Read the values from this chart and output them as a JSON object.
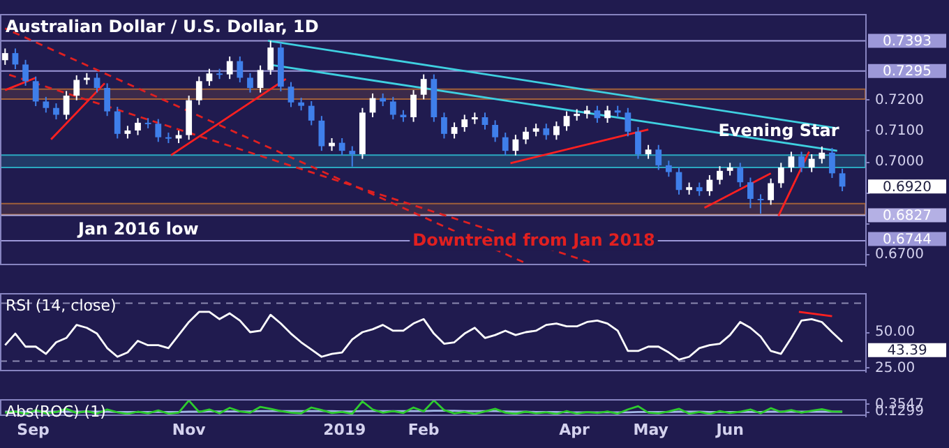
{
  "chart_data": [
    {
      "type": "candlestick",
      "title": "Australian Dollar / U.S. Dollar, 1D",
      "grid": false,
      "tick_labels": "y",
      "x": [
        "2018-08-21",
        "2018-08-25",
        "2018-08-29",
        "2018-09-02",
        "2018-09-06",
        "2018-09-10",
        "2018-09-14",
        "2018-09-18",
        "2018-09-22",
        "2018-09-26",
        "2018-09-30",
        "2018-10-04",
        "2018-10-08",
        "2018-10-12",
        "2018-10-16",
        "2018-10-20",
        "2018-10-24",
        "2018-10-28",
        "2018-11-01",
        "2018-11-05",
        "2018-11-09",
        "2018-11-13",
        "2018-11-17",
        "2018-11-21",
        "2018-11-25",
        "2018-11-29",
        "2018-12-03",
        "2018-12-07",
        "2018-12-11",
        "2018-12-15",
        "2018-12-19",
        "2018-12-23",
        "2018-12-27",
        "2018-12-31",
        "2019-01-04",
        "2019-01-08",
        "2019-01-12",
        "2019-01-16",
        "2019-01-20",
        "2019-01-24",
        "2019-01-28",
        "2019-02-01",
        "2019-02-05",
        "2019-02-09",
        "2019-02-13",
        "2019-02-17",
        "2019-02-21",
        "2019-02-25",
        "2019-03-01",
        "2019-03-05",
        "2019-03-09",
        "2019-03-13",
        "2019-03-17",
        "2019-03-21",
        "2019-03-25",
        "2019-03-29",
        "2019-04-02",
        "2019-04-06",
        "2019-04-10",
        "2019-04-14",
        "2019-04-18",
        "2019-04-22",
        "2019-04-26",
        "2019-04-30",
        "2019-05-04",
        "2019-05-08",
        "2019-05-12",
        "2019-05-16",
        "2019-05-20",
        "2019-05-24",
        "2019-05-28",
        "2019-06-01",
        "2019-06-05",
        "2019-06-09",
        "2019-06-13",
        "2019-06-17",
        "2019-06-21",
        "2019-06-25",
        "2019-06-29",
        "2019-07-03",
        "2019-07-07",
        "2019-07-11",
        "2019-07-15"
      ],
      "ohlc": [
        [
          0.733,
          0.7368,
          0.7315,
          0.7353
        ],
        [
          0.7353,
          0.7368,
          0.7301,
          0.7316
        ],
        [
          0.7316,
          0.7331,
          0.7247,
          0.7262
        ],
        [
          0.7262,
          0.7277,
          0.7181,
          0.7196
        ],
        [
          0.7196,
          0.7211,
          0.716,
          0.7175
        ],
        [
          0.7175,
          0.719,
          0.7138,
          0.7153
        ],
        [
          0.7153,
          0.723,
          0.7138,
          0.7215
        ],
        [
          0.7215,
          0.7281,
          0.72,
          0.7266
        ],
        [
          0.7266,
          0.7288,
          0.7251,
          0.7273
        ],
        [
          0.7273,
          0.7288,
          0.7225,
          0.724
        ],
        [
          0.724,
          0.7255,
          0.7149,
          0.7164
        ],
        [
          0.7164,
          0.7179,
          0.7076,
          0.7091
        ],
        [
          0.7091,
          0.7117,
          0.7076,
          0.7102
        ],
        [
          0.7102,
          0.7142,
          0.7087,
          0.7127
        ],
        [
          0.7127,
          0.7142,
          0.7109,
          0.7124
        ],
        [
          0.7124,
          0.7139,
          0.7065,
          0.708
        ],
        [
          0.708,
          0.7095,
          0.7061,
          0.7076
        ],
        [
          0.7076,
          0.7102,
          0.7061,
          0.7087
        ],
        [
          0.7087,
          0.7215,
          0.7072,
          0.72
        ],
        [
          0.72,
          0.7277,
          0.7185,
          0.7262
        ],
        [
          0.7262,
          0.7302,
          0.7247,
          0.7287
        ],
        [
          0.7287,
          0.7302,
          0.7269,
          0.7284
        ],
        [
          0.7284,
          0.7342,
          0.7269,
          0.7327
        ],
        [
          0.7327,
          0.7342,
          0.7258,
          0.7273
        ],
        [
          0.7273,
          0.7288,
          0.7225,
          0.724
        ],
        [
          0.724,
          0.7313,
          0.7225,
          0.7298
        ],
        [
          0.7298,
          0.7393,
          0.7283,
          0.7371
        ],
        [
          0.7371,
          0.7386,
          0.7229,
          0.7244
        ],
        [
          0.7244,
          0.7259,
          0.7178,
          0.7193
        ],
        [
          0.7193,
          0.7208,
          0.7167,
          0.7182
        ],
        [
          0.7182,
          0.7197,
          0.7119,
          0.7134
        ],
        [
          0.7134,
          0.7149,
          0.7036,
          0.7051
        ],
        [
          0.7051,
          0.7077,
          0.7036,
          0.7062
        ],
        [
          0.7062,
          0.7077,
          0.7021,
          0.7036
        ],
        [
          0.7036,
          0.7051,
          0.6985,
          0.7025
        ],
        [
          0.7025,
          0.7175,
          0.701,
          0.716
        ],
        [
          0.716,
          0.7222,
          0.7145,
          0.7207
        ],
        [
          0.7207,
          0.7222,
          0.7181,
          0.7196
        ],
        [
          0.7196,
          0.7211,
          0.7138,
          0.7153
        ],
        [
          0.7153,
          0.7168,
          0.713,
          0.7145
        ],
        [
          0.7145,
          0.7233,
          0.713,
          0.7218
        ],
        [
          0.7218,
          0.7284,
          0.7203,
          0.7269
        ],
        [
          0.7269,
          0.7284,
          0.713,
          0.7145
        ],
        [
          0.7145,
          0.716,
          0.7076,
          0.7091
        ],
        [
          0.7091,
          0.7128,
          0.7076,
          0.7113
        ],
        [
          0.7113,
          0.7153,
          0.7098,
          0.7138
        ],
        [
          0.7138,
          0.716,
          0.7123,
          0.7145
        ],
        [
          0.7145,
          0.716,
          0.7105,
          0.712
        ],
        [
          0.712,
          0.7135,
          0.7065,
          0.708
        ],
        [
          0.708,
          0.7095,
          0.7021,
          0.7036
        ],
        [
          0.7036,
          0.7088,
          0.7021,
          0.7073
        ],
        [
          0.7073,
          0.7113,
          0.7058,
          0.7098
        ],
        [
          0.7098,
          0.7124,
          0.7083,
          0.7109
        ],
        [
          0.7109,
          0.7124,
          0.7072,
          0.7087
        ],
        [
          0.7087,
          0.7131,
          0.7072,
          0.7116
        ],
        [
          0.7116,
          0.7164,
          0.7101,
          0.7149
        ],
        [
          0.7149,
          0.7171,
          0.7134,
          0.7156
        ],
        [
          0.7156,
          0.7182,
          0.7141,
          0.7167
        ],
        [
          0.7167,
          0.7182,
          0.7127,
          0.7142
        ],
        [
          0.7142,
          0.7182,
          0.7127,
          0.7167
        ],
        [
          0.7167,
          0.7182,
          0.7145,
          0.716
        ],
        [
          0.716,
          0.7175,
          0.7083,
          0.7098
        ],
        [
          0.7098,
          0.7113,
          0.701,
          0.7025
        ],
        [
          0.7025,
          0.7055,
          0.701,
          0.704
        ],
        [
          0.704,
          0.7055,
          0.6974,
          0.6989
        ],
        [
          0.6989,
          0.7004,
          0.6952,
          0.6967
        ],
        [
          0.6967,
          0.6982,
          0.6894,
          0.6909
        ],
        [
          0.6909,
          0.6933,
          0.6894,
          0.6918
        ],
        [
          0.6918,
          0.6933,
          0.689,
          0.6905
        ],
        [
          0.6905,
          0.6957,
          0.689,
          0.6942
        ],
        [
          0.6942,
          0.6986,
          0.6927,
          0.6971
        ],
        [
          0.6971,
          0.6997,
          0.6956,
          0.6982
        ],
        [
          0.6982,
          0.6997,
          0.6919,
          0.6934
        ],
        [
          0.6934,
          0.6949,
          0.685,
          0.688
        ],
        [
          0.688,
          0.6895,
          0.6832,
          0.6876
        ],
        [
          0.6876,
          0.6946,
          0.6861,
          0.6931
        ],
        [
          0.6931,
          0.6997,
          0.6916,
          0.6982
        ],
        [
          0.6982,
          0.7033,
          0.6967,
          0.7018
        ],
        [
          0.7018,
          0.7033,
          0.6967,
          0.6982
        ],
        [
          0.6982,
          0.7025,
          0.6967,
          0.701
        ],
        [
          0.701,
          0.705,
          0.6995,
          0.703
        ],
        [
          0.703,
          0.7045,
          0.6948,
          0.6963
        ],
        [
          0.6963,
          0.6978,
          0.6905,
          0.692
        ]
      ],
      "series": [
        {
          "type": "line",
          "x": [
            "2018-12-02",
            "2019-07-13"
          ],
          "values": [
            0.7393,
            0.7109
          ],
          "color": "#3fd0e0"
        },
        {
          "type": "line",
          "x": [
            "2018-12-02",
            "2019-07-13"
          ],
          "values": [
            0.7316,
            0.7036
          ],
          "color": "#3fd0e0"
        },
        {
          "type": "line",
          "x": [
            "2018-08-21",
            "2019-03-12"
          ],
          "values": [
            0.7433,
            0.6675
          ],
          "color": "#e02020",
          "line_style": "dashed"
        },
        {
          "type": "line",
          "name": "Downtrend from Jan 2018",
          "x": [
            "2018-08-21",
            "2019-04-07"
          ],
          "values": [
            0.7287,
            0.6675
          ],
          "color": "#e02020",
          "line_style": "dashed"
        },
        {
          "type": "line",
          "x": [
            "2018-08-21",
            "2018-09-02"
          ],
          "values": [
            0.7233,
            0.7273
          ],
          "color": "#ff2020"
        },
        {
          "type": "line",
          "x": [
            "2018-09-08",
            "2018-09-29"
          ],
          "values": [
            0.7073,
            0.7255
          ],
          "color": "#ff2020"
        },
        {
          "type": "line",
          "x": [
            "2018-10-25",
            "2018-12-09"
          ],
          "values": [
            0.7022,
            0.7269
          ],
          "color": "#ff2020"
        },
        {
          "type": "line",
          "x": [
            "2019-03-07",
            "2019-04-30"
          ],
          "values": [
            0.6996,
            0.7105
          ],
          "color": "#ff2020"
        },
        {
          "type": "line",
          "x": [
            "2019-05-22",
            "2019-06-17"
          ],
          "values": [
            0.6851,
            0.6963
          ],
          "color": "#ff2020"
        },
        {
          "type": "line",
          "x": [
            "2019-06-20",
            "2019-07-02"
          ],
          "values": [
            0.6825,
            0.7033
          ],
          "color": "#ff2020"
        }
      ],
      "xlim": [
        "2018-08-19",
        "2019-07-24"
      ],
      "ylim": [
        0.6665,
        0.748
      ],
      "yticks": [
        {
          "value": 0.67,
          "label": "0.6700"
        },
        {
          "value": 0.68,
          "label": null
        },
        {
          "value": 0.69,
          "label": null
        },
        {
          "value": 0.7,
          "label": "0.7000"
        },
        {
          "value": 0.71,
          "label": "0.7100"
        },
        {
          "value": 0.72,
          "label": "0.7200"
        }
      ],
      "ref_lines": [
        {
          "axis": "y",
          "value": 0.7393,
          "label": "0.7393",
          "color": "#9c98d8"
        },
        {
          "axis": "y",
          "value": 0.7295,
          "label": "0.7295",
          "color": "#9c98d8"
        },
        {
          "axis": "y",
          "value": 0.6827,
          "label": "0.6827",
          "color": "#b4b0e4"
        },
        {
          "axis": "y",
          "value": 0.6744,
          "label": "0.6744",
          "color": "#9c98d8"
        }
      ],
      "bands": [
        {
          "axis": "y",
          "from": 0.6982,
          "to": 0.7022,
          "color": "#2aa8c0"
        },
        {
          "axis": "y",
          "from": 0.7204,
          "to": 0.7236,
          "color": "#a0603a"
        },
        {
          "axis": "y",
          "from": 0.6829,
          "to": 0.6865,
          "color": "#a0603a"
        }
      ],
      "annotations": [
        "Evening Star",
        "Jan 2016 low",
        {
          "text": "0.6920",
          "x": "2019-07-15",
          "y": 0.692
        }
      ]
    },
    {
      "type": "line",
      "title": "RSI (14, close)",
      "grid": false,
      "tick_labels": "y",
      "x": [
        "2018-08-21",
        "2018-08-25",
        "2018-08-29",
        "2018-09-02",
        "2018-09-06",
        "2018-09-10",
        "2018-09-14",
        "2018-09-18",
        "2018-09-22",
        "2018-09-26",
        "2018-09-30",
        "2018-10-04",
        "2018-10-08",
        "2018-10-12",
        "2018-10-16",
        "2018-10-20",
        "2018-10-24",
        "2018-10-28",
        "2018-11-01",
        "2018-11-05",
        "2018-11-09",
        "2018-11-13",
        "2018-11-17",
        "2018-11-21",
        "2018-11-25",
        "2018-11-29",
        "2018-12-03",
        "2018-12-07",
        "2018-12-11",
        "2018-12-15",
        "2018-12-19",
        "2018-12-23",
        "2018-12-27",
        "2018-12-31",
        "2019-01-04",
        "2019-01-08",
        "2019-01-12",
        "2019-01-16",
        "2019-01-20",
        "2019-01-24",
        "2019-01-28",
        "2019-02-01",
        "2019-02-05",
        "2019-02-09",
        "2019-02-13",
        "2019-02-17",
        "2019-02-21",
        "2019-02-25",
        "2019-03-01",
        "2019-03-05",
        "2019-03-09",
        "2019-03-13",
        "2019-03-17",
        "2019-03-21",
        "2019-03-25",
        "2019-03-29",
        "2019-04-02",
        "2019-04-06",
        "2019-04-10",
        "2019-04-14",
        "2019-04-18",
        "2019-04-22",
        "2019-04-26",
        "2019-04-30",
        "2019-05-04",
        "2019-05-08",
        "2019-05-12",
        "2019-05-16",
        "2019-05-20",
        "2019-05-24",
        "2019-05-28",
        "2019-06-01",
        "2019-06-05",
        "2019-06-09",
        "2019-06-13",
        "2019-06-17",
        "2019-06-21",
        "2019-06-25",
        "2019-06-29",
        "2019-07-03",
        "2019-07-07",
        "2019-07-11",
        "2019-07-15"
      ],
      "series": [
        {
          "color": "#ffffff",
          "values": [
            41,
            49,
            40,
            40,
            35,
            43,
            46,
            55,
            53,
            49,
            39,
            33,
            36,
            44,
            41,
            41,
            39,
            48,
            57,
            64,
            64,
            59,
            63,
            58,
            50,
            51,
            62,
            56,
            49,
            43,
            38,
            33,
            35,
            36,
            45,
            50,
            52,
            55,
            51,
            51,
            56,
            59,
            49,
            42,
            43,
            49,
            53,
            46,
            48,
            51,
            48,
            50,
            51,
            55,
            56,
            54,
            54,
            57,
            58,
            56,
            51,
            37,
            37,
            40,
            40,
            36,
            31,
            33,
            39,
            41,
            42,
            48,
            57,
            53,
            47,
            37,
            35,
            46,
            58,
            59,
            57,
            50,
            43.39
          ]
        },
        {
          "type": "line",
          "x": [
            "2019-06-28",
            "2019-07-11"
          ],
          "values": [
            64,
            61
          ],
          "color": "#ff2020"
        }
      ],
      "xlim": [
        "2018-08-19",
        "2019-07-24"
      ],
      "ylim": [
        23,
        77
      ],
      "yticks": [
        {
          "value": 25,
          "label": "25.00"
        },
        {
          "value": 50,
          "label": "50.00"
        }
      ],
      "ref_lines": [
        {
          "axis": "y",
          "value": 30,
          "color": "#8a88b0",
          "line_style": "dashed"
        },
        {
          "axis": "y",
          "value": 70,
          "color": "#8a88b0",
          "line_style": "dashed"
        }
      ],
      "annotations": [
        "43.39"
      ]
    },
    {
      "type": "line",
      "title": "Abs(ROC) (1)",
      "grid": false,
      "x": [
        "2018-08-21",
        "2018-08-25",
        "2018-08-29",
        "2018-09-02",
        "2018-09-06",
        "2018-09-10",
        "2018-09-14",
        "2018-09-18",
        "2018-09-22",
        "2018-09-26",
        "2018-09-30",
        "2018-10-04",
        "2018-10-08",
        "2018-10-12",
        "2018-10-16",
        "2018-10-20",
        "2018-10-24",
        "2018-10-28",
        "2018-11-01",
        "2018-11-05",
        "2018-11-09",
        "2018-11-13",
        "2018-11-17",
        "2018-11-21",
        "2018-11-25",
        "2018-11-29",
        "2018-12-03",
        "2018-12-07",
        "2018-12-11",
        "2018-12-15",
        "2018-12-19",
        "2018-12-23",
        "2018-12-27",
        "2018-12-31",
        "2019-01-04",
        "2019-01-08",
        "2019-01-12",
        "2019-01-16",
        "2019-01-20",
        "2019-01-24",
        "2019-01-28",
        "2019-02-01",
        "2019-02-05",
        "2019-02-09",
        "2019-02-13",
        "2019-02-17",
        "2019-02-21",
        "2019-02-25",
        "2019-03-01",
        "2019-03-05",
        "2019-03-09",
        "2019-03-13",
        "2019-03-17",
        "2019-03-21",
        "2019-03-25",
        "2019-03-29",
        "2019-04-02",
        "2019-04-06",
        "2019-04-10",
        "2019-04-14",
        "2019-04-18",
        "2019-04-22",
        "2019-04-26",
        "2019-04-30",
        "2019-05-04",
        "2019-05-08",
        "2019-05-12",
        "2019-05-16",
        "2019-05-20",
        "2019-05-24",
        "2019-05-28",
        "2019-06-01",
        "2019-06-05",
        "2019-06-09",
        "2019-06-13",
        "2019-06-17",
        "2019-06-21",
        "2019-06-25",
        "2019-06-29",
        "2019-07-03",
        "2019-07-07",
        "2019-07-11",
        "2019-07-15"
      ],
      "series": [
        {
          "color": "#2ecc2e",
          "values": [
            0.1,
            0.14,
            0.06,
            0.18,
            0.08,
            0.12,
            0.22,
            0.09,
            0.15,
            0.07,
            0.2,
            0.11,
            0.06,
            0.13,
            0.08,
            0.17,
            0.07,
            0.1,
            0.48,
            0.12,
            0.2,
            0.08,
            0.25,
            0.14,
            0.1,
            0.28,
            0.22,
            0.15,
            0.1,
            0.08,
            0.26,
            0.18,
            0.09,
            0.12,
            0.07,
            0.45,
            0.2,
            0.1,
            0.15,
            0.09,
            0.26,
            0.14,
            0.48,
            0.18,
            0.08,
            0.12,
            0.06,
            0.14,
            0.22,
            0.1,
            0.07,
            0.13,
            0.08,
            0.11,
            0.06,
            0.15,
            0.07,
            0.12,
            0.09,
            0.14,
            0.07,
            0.2,
            0.3,
            0.1,
            0.08,
            0.14,
            0.22,
            0.07,
            0.12,
            0.06,
            0.15,
            0.09,
            0.13,
            0.2,
            0.08,
            0.24,
            0.12,
            0.18,
            0.1,
            0.16,
            0.21,
            0.14,
            0.1299
          ]
        },
        {
          "color": "#a3b8e8",
          "values": [
            0.13,
            0.13,
            0.13,
            0.13,
            0.13,
            0.13,
            0.13,
            0.13,
            0.13,
            0.13,
            0.13,
            0.12,
            0.12,
            0.12,
            0.12,
            0.12,
            0.12,
            0.12,
            0.13,
            0.13,
            0.14,
            0.14,
            0.14,
            0.14,
            0.14,
            0.15,
            0.15,
            0.15,
            0.15,
            0.15,
            0.15,
            0.15,
            0.15,
            0.14,
            0.14,
            0.15,
            0.15,
            0.15,
            0.15,
            0.15,
            0.15,
            0.15,
            0.16,
            0.16,
            0.16,
            0.15,
            0.15,
            0.15,
            0.15,
            0.14,
            0.13,
            0.13,
            0.12,
            0.12,
            0.12,
            0.11,
            0.11,
            0.11,
            0.11,
            0.11,
            0.11,
            0.11,
            0.12,
            0.12,
            0.12,
            0.12,
            0.13,
            0.13,
            0.13,
            0.12,
            0.12,
            0.12,
            0.12,
            0.12,
            0.12,
            0.13,
            0.13,
            0.13,
            0.13,
            0.13,
            0.13,
            0.13,
            0.13
          ]
        }
      ],
      "xlim": [
        "2018-08-19",
        "2019-07-24"
      ],
      "xticks": [
        {
          "value": "2018-09-01",
          "label": "Sep"
        },
        {
          "value": "2018-11-01",
          "label": "Nov"
        },
        {
          "value": "2019-01-01",
          "label": "2019"
        },
        {
          "value": "2019-02-01",
          "label": "Feb"
        },
        {
          "value": "2019-04-01",
          "label": "Apr"
        },
        {
          "value": "2019-05-01",
          "label": "May"
        },
        {
          "value": "2019-06-01",
          "label": "Jun"
        }
      ],
      "ylim": [
        0,
        0.52
      ],
      "yticks": [
        0.1299,
        0.3547
      ]
    }
  ]
}
